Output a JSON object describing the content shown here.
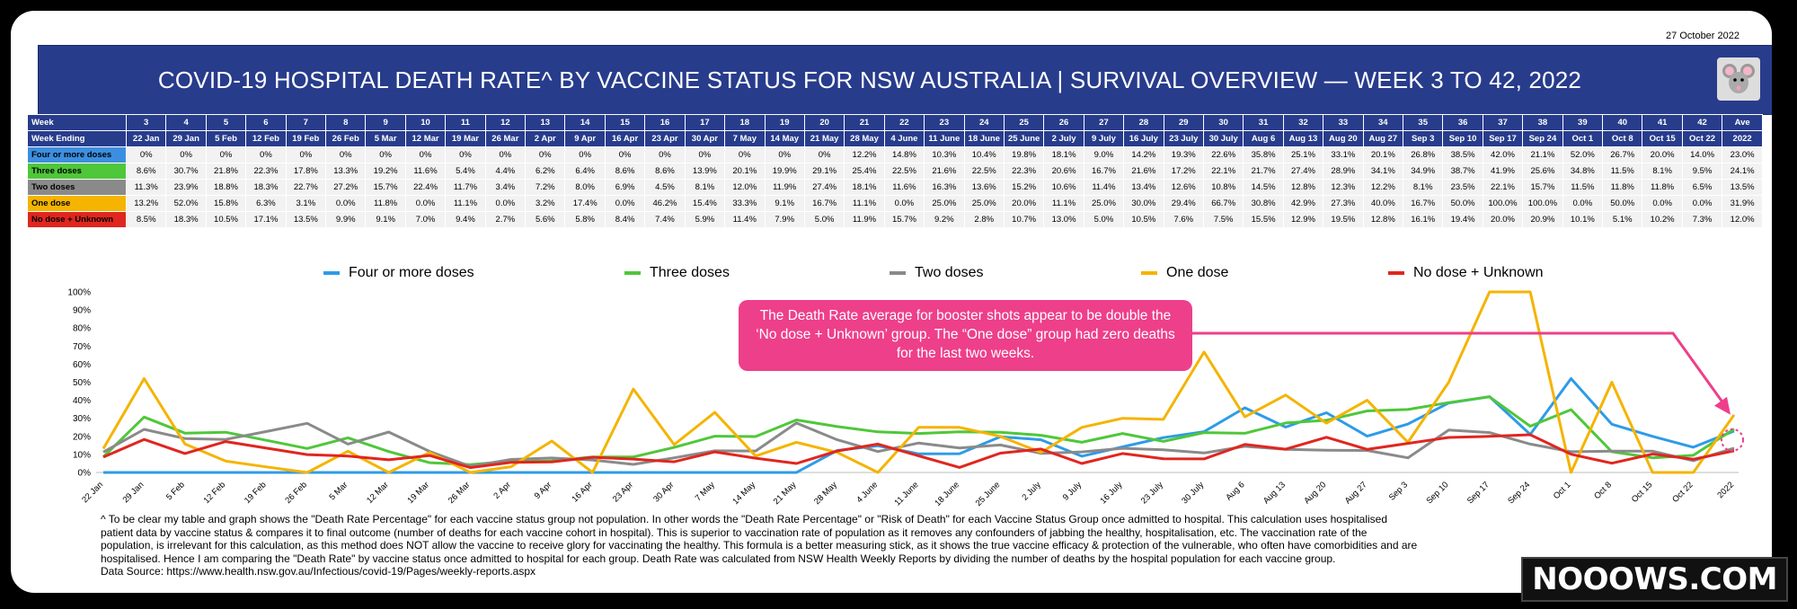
{
  "date": "27 October 2022",
  "title": "COVID-19 HOSPITAL DEATH RATE^ BY VACCINE STATUS FOR NSW AUSTRALIA  |  SURVIVAL OVERVIEW — WEEK 3 TO 42, 2022",
  "logo_icon": "mouse-face-icon",
  "table": {
    "week_label": "Week",
    "ending_label": "Week Ending",
    "weeks": [
      "3",
      "4",
      "5",
      "6",
      "7",
      "8",
      "9",
      "10",
      "11",
      "12",
      "13",
      "14",
      "15",
      "16",
      "17",
      "18",
      "19",
      "20",
      "21",
      "22",
      "23",
      "24",
      "25",
      "26",
      "27",
      "28",
      "29",
      "30",
      "31",
      "32",
      "33",
      "34",
      "35",
      "36",
      "37",
      "38",
      "39",
      "40",
      "41",
      "42",
      "Ave"
    ],
    "endings": [
      "22 Jan",
      "29 Jan",
      "5 Feb",
      "12 Feb",
      "19 Feb",
      "26 Feb",
      "5 Mar",
      "12 Mar",
      "19 Mar",
      "26 Mar",
      "2 Apr",
      "9 Apr",
      "16 Apr",
      "23 Apr",
      "30 Apr",
      "7 May",
      "14 May",
      "21 May",
      "28 May",
      "4 June",
      "11 June",
      "18 June",
      "25 June",
      "2 July",
      "9 July",
      "16 July",
      "23 July",
      "30 July",
      "Aug 6",
      "Aug 13",
      "Aug 20",
      "Aug 27",
      "Sep 3",
      "Sep 10",
      "Sep 17",
      "Sep 24",
      "Oct 1",
      "Oct 8",
      "Oct 15",
      "Oct 22",
      "2022"
    ],
    "rows": [
      {
        "label": "Four or more doses",
        "color": "#3c8fe0",
        "cells": [
          "0%",
          "0%",
          "0%",
          "0%",
          "0%",
          "0%",
          "0%",
          "0%",
          "0%",
          "0%",
          "0%",
          "0%",
          "0%",
          "0%",
          "0%",
          "0%",
          "0%",
          "0%",
          "12.2%",
          "14.8%",
          "10.3%",
          "10.4%",
          "19.8%",
          "18.1%",
          "9.0%",
          "14.2%",
          "19.3%",
          "22.6%",
          "35.8%",
          "25.1%",
          "33.1%",
          "20.1%",
          "26.8%",
          "38.5%",
          "42.0%",
          "21.1%",
          "52.0%",
          "26.7%",
          "20.0%",
          "14.0%",
          "23.0%"
        ]
      },
      {
        "label": "Three doses",
        "color": "#4fc73a",
        "cells": [
          "8.6%",
          "30.7%",
          "21.8%",
          "22.3%",
          "17.8%",
          "13.3%",
          "19.2%",
          "11.6%",
          "5.4%",
          "4.4%",
          "6.2%",
          "6.4%",
          "8.6%",
          "8.6%",
          "13.9%",
          "20.1%",
          "19.9%",
          "29.1%",
          "25.4%",
          "22.5%",
          "21.6%",
          "22.5%",
          "22.3%",
          "20.6%",
          "16.7%",
          "21.6%",
          "17.2%",
          "22.1%",
          "21.7%",
          "27.4%",
          "28.9%",
          "34.1%",
          "34.9%",
          "38.7%",
          "41.9%",
          "25.6%",
          "34.8%",
          "11.5%",
          "8.1%",
          "9.5%",
          "24.1%"
        ]
      },
      {
        "label": "Two doses",
        "color": "#8a8a8a",
        "cells": [
          "11.3%",
          "23.9%",
          "18.8%",
          "18.3%",
          "22.7%",
          "27.2%",
          "15.7%",
          "22.4%",
          "11.7%",
          "3.4%",
          "7.2%",
          "8.0%",
          "6.9%",
          "4.5%",
          "8.1%",
          "12.0%",
          "11.9%",
          "27.4%",
          "18.1%",
          "11.6%",
          "16.3%",
          "13.6%",
          "15.2%",
          "10.6%",
          "11.4%",
          "13.4%",
          "12.6%",
          "10.8%",
          "14.5%",
          "12.8%",
          "12.3%",
          "12.2%",
          "8.1%",
          "23.5%",
          "22.1%",
          "15.7%",
          "11.5%",
          "11.8%",
          "11.8%",
          "6.5%",
          "13.5%"
        ]
      },
      {
        "label": "One dose",
        "color": "#f4b400",
        "cells": [
          "13.2%",
          "52.0%",
          "15.8%",
          "6.3%",
          "3.1%",
          "0.0%",
          "11.8%",
          "0.0%",
          "11.1%",
          "0.0%",
          "3.2%",
          "17.4%",
          "0.0%",
          "46.2%",
          "15.4%",
          "33.3%",
          "9.1%",
          "16.7%",
          "11.1%",
          "0.0%",
          "25.0%",
          "25.0%",
          "20.0%",
          "11.1%",
          "25.0%",
          "30.0%",
          "29.4%",
          "66.7%",
          "30.8%",
          "42.9%",
          "27.3%",
          "40.0%",
          "16.7%",
          "50.0%",
          "100.0%",
          "100.0%",
          "0.0%",
          "50.0%",
          "0.0%",
          "0.0%",
          "31.9%"
        ]
      },
      {
        "label": "No dose + Unknown",
        "color": "#e0261f",
        "cells": [
          "8.5%",
          "18.3%",
          "10.5%",
          "17.1%",
          "13.5%",
          "9.9%",
          "9.1%",
          "7.0%",
          "9.4%",
          "2.7%",
          "5.6%",
          "5.8%",
          "8.4%",
          "7.4%",
          "5.9%",
          "11.4%",
          "7.9%",
          "5.0%",
          "11.9%",
          "15.7%",
          "9.2%",
          "2.8%",
          "10.7%",
          "13.0%",
          "5.0%",
          "10.5%",
          "7.6%",
          "7.5%",
          "15.5%",
          "12.9%",
          "19.5%",
          "12.8%",
          "16.1%",
          "19.4%",
          "20.0%",
          "20.9%",
          "10.1%",
          "5.1%",
          "10.2%",
          "7.3%",
          "12.0%"
        ]
      }
    ]
  },
  "callout": "The Death Rate average for booster shots appear to be double the ‘No dose + Unknown’ group. The “One dose” group had zero deaths for the last two weeks.",
  "footnote": "^ To be clear my table and graph shows the \"Death Rate Percentage\" for each vaccine status group not population. In other words the \"Death Rate Percentage\" or \"Risk of Death\" for each Vaccine Status Group once admitted to hospital. This calculation uses hospitalised\npatient data by vaccine status & compares it to final outcome (number of deaths for each vaccine cohort in hospital). This is superior to vaccination rate of population as it removes any confounders of jabbing the healthy, hospitalisation, etc. The vaccination rate of the\npopulation, is irrelevant for this calculation, as this method does NOT allow the vaccine to receive glory for vaccinating the healthy. This formula is a better measuring stick, as it shows the true vaccine efficacy & protection of the vulnerable, who often have comorbidities and are\nhospitalised. Hence I am comparing the \"Death Rate\" by vaccine status once admitted to hospital for each group. Death Rate was calculated from NSW Health Weekly Reports by dividing the number of deaths by the hospital population for each vaccine group.\nData Source: https://www.health.nsw.gov.au/Infectious/covid-19/Pages/weekly-reports.aspx",
  "brand": "NOOOWS.COM",
  "chart_data": {
    "type": "line",
    "x": [
      "22 Jan",
      "29 Jan",
      "5 Feb",
      "12 Feb",
      "19 Feb",
      "26 Feb",
      "5 Mar",
      "12 Mar",
      "19 Mar",
      "26 Mar",
      "2 Apr",
      "9 Apr",
      "16 Apr",
      "23 Apr",
      "30 Apr",
      "7 May",
      "14 May",
      "21 May",
      "28 May",
      "4 June",
      "11 June",
      "18 June",
      "25 June",
      "2 July",
      "9 July",
      "16 July",
      "23 July",
      "30 July",
      "Aug 6",
      "Aug 13",
      "Aug 20",
      "Aug 27",
      "Sep 3",
      "Sep 10",
      "Sep 17",
      "Sep 24",
      "Oct 1",
      "Oct 8",
      "Oct 15",
      "Oct 22",
      "2022"
    ],
    "ylim": [
      0,
      100
    ],
    "yticks": [
      "0%",
      "10%",
      "20%",
      "30%",
      "40%",
      "50%",
      "60%",
      "70%",
      "80%",
      "90%",
      "100%"
    ],
    "legend_position": "top",
    "grid": false,
    "series": [
      {
        "name": "Four or more doses",
        "color": "#2e9be8",
        "values": [
          0,
          0,
          0,
          0,
          0,
          0,
          0,
          0,
          0,
          0,
          0,
          0,
          0,
          0,
          0,
          0,
          0,
          0,
          12.2,
          14.8,
          10.3,
          10.4,
          19.8,
          18.1,
          9.0,
          14.2,
          19.3,
          22.6,
          35.8,
          25.1,
          33.1,
          20.1,
          26.8,
          38.5,
          42.0,
          21.1,
          52.0,
          26.7,
          20.0,
          14.0,
          23.0
        ]
      },
      {
        "name": "Three doses",
        "color": "#4fc73a",
        "values": [
          8.6,
          30.7,
          21.8,
          22.3,
          17.8,
          13.3,
          19.2,
          11.6,
          5.4,
          4.4,
          6.2,
          6.4,
          8.6,
          8.6,
          13.9,
          20.1,
          19.9,
          29.1,
          25.4,
          22.5,
          21.6,
          22.5,
          22.3,
          20.6,
          16.7,
          21.6,
          17.2,
          22.1,
          21.7,
          27.4,
          28.9,
          34.1,
          34.9,
          38.7,
          41.9,
          25.6,
          34.8,
          11.5,
          8.1,
          9.5,
          24.1
        ]
      },
      {
        "name": "Two doses",
        "color": "#8a8a8a",
        "values": [
          11.3,
          23.9,
          18.8,
          18.3,
          22.7,
          27.2,
          15.7,
          22.4,
          11.7,
          3.4,
          7.2,
          8.0,
          6.9,
          4.5,
          8.1,
          12.0,
          11.9,
          27.4,
          18.1,
          11.6,
          16.3,
          13.6,
          15.2,
          10.6,
          11.4,
          13.4,
          12.6,
          10.8,
          14.5,
          12.8,
          12.3,
          12.2,
          8.1,
          23.5,
          22.1,
          15.7,
          11.5,
          11.8,
          11.8,
          6.5,
          13.5
        ]
      },
      {
        "name": "One dose",
        "color": "#f4b400",
        "values": [
          13.2,
          52.0,
          15.8,
          6.3,
          3.1,
          0.0,
          11.8,
          0.0,
          11.1,
          0.0,
          3.2,
          17.4,
          0.0,
          46.2,
          15.4,
          33.3,
          9.1,
          16.7,
          11.1,
          0.0,
          25.0,
          25.0,
          20.0,
          11.1,
          25.0,
          30.0,
          29.4,
          66.7,
          30.8,
          42.9,
          27.3,
          40.0,
          16.7,
          50.0,
          100.0,
          100.0,
          0.0,
          50.0,
          0.0,
          0.0,
          31.9
        ]
      },
      {
        "name": "No dose + Unknown",
        "color": "#e0261f",
        "values": [
          8.5,
          18.3,
          10.5,
          17.1,
          13.5,
          9.9,
          9.1,
          7.0,
          9.4,
          2.7,
          5.6,
          5.8,
          8.4,
          7.4,
          5.9,
          11.4,
          7.9,
          5.0,
          11.9,
          15.7,
          9.2,
          2.8,
          10.7,
          13.0,
          5.0,
          10.5,
          7.6,
          7.5,
          15.5,
          12.9,
          19.5,
          12.8,
          16.1,
          19.4,
          20.0,
          20.9,
          10.1,
          5.1,
          10.2,
          7.3,
          12.0
        ]
      }
    ]
  }
}
